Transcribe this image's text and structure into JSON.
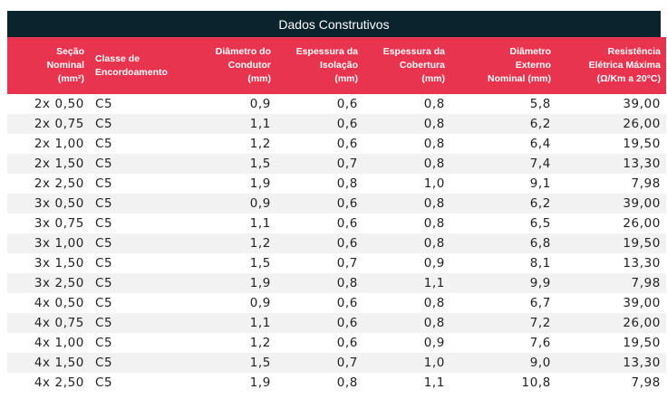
{
  "title": "Dados Construtivos",
  "colors": {
    "title_bg": "#0b232d",
    "header_bg": "#e8344e",
    "row_alt": "#f2f2f2"
  },
  "headers": [
    "Seção\nNominal\n(mm²)",
    "Classe de\nEncordoamento",
    "Diâmetro do\nCondutor\n(mm)",
    "Espessura da\nIsolação\n(mm)",
    "Espessura da\nCobertura\n(mm)",
    "Diâmetro\nExterno\nNominal (mm)",
    "Resistência\nElétrica Máxima\n(Ω/Km a 20°C)"
  ],
  "rows": [
    [
      "2x 0,50",
      "C5",
      "0,9",
      "0,6",
      "0,8",
      "5,8",
      "39,00"
    ],
    [
      "2x 0,75",
      "C5",
      "1,1",
      "0,6",
      "0,8",
      "6,2",
      "26,00"
    ],
    [
      "2x 1,00",
      "C5",
      "1,2",
      "0,6",
      "0,8",
      "6,4",
      "19,50"
    ],
    [
      "2x 1,50",
      "C5",
      "1,5",
      "0,7",
      "0,8",
      "7,4",
      "13,30"
    ],
    [
      "2x 2,50",
      "C5",
      "1,9",
      "0,8",
      "1,0",
      "9,1",
      "7,98"
    ],
    [
      "3x 0,50",
      "C5",
      "0,9",
      "0,6",
      "0,8",
      "6,2",
      "39,00"
    ],
    [
      "3x 0,75",
      "C5",
      "1,1",
      "0,6",
      "0,8",
      "6,5",
      "26,00"
    ],
    [
      "3x 1,00",
      "C5",
      "1,2",
      "0,6",
      "0,8",
      "6,8",
      "19,50"
    ],
    [
      "3x 1,50",
      "C5",
      "1,5",
      "0,7",
      "0,9",
      "8,1",
      "13,30"
    ],
    [
      "3x 2,50",
      "C5",
      "1,9",
      "0,8",
      "1,1",
      "9,9",
      "7,98"
    ],
    [
      "4x 0,50",
      "C5",
      "0,9",
      "0,6",
      "0,8",
      "6,7",
      "39,00"
    ],
    [
      "4x 0,75",
      "C5",
      "1,1",
      "0,6",
      "0,8",
      "7,2",
      "26,00"
    ],
    [
      "4x 1,00",
      "C5",
      "1,2",
      "0,6",
      "0,9",
      "7,6",
      "19,50"
    ],
    [
      "4x 1,50",
      "C5",
      "1,5",
      "0,7",
      "1,0",
      "9,0",
      "13,30"
    ],
    [
      "4x 2,50",
      "C5",
      "1,9",
      "0,8",
      "1,1",
      "10,8",
      "7,98"
    ]
  ]
}
